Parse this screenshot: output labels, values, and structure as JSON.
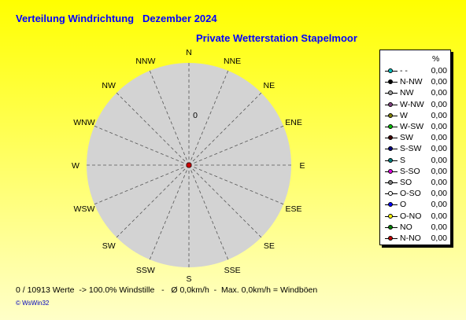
{
  "title": "Verteilung Windrichtung   Dezember 2024",
  "subtitle": "Private Wetterstation Stapelmoor",
  "colors": {
    "title": "#0000ff",
    "disk": "#d3d3d3",
    "center": "#cc0000"
  },
  "chart_data": {
    "type": "radar",
    "directions": [
      "N",
      "NNE",
      "NE",
      "ENE",
      "E",
      "ESE",
      "SE",
      "SSE",
      "S",
      "SSW",
      "SW",
      "WSW",
      "W",
      "WNW",
      "NW",
      "NNW"
    ],
    "values": [
      0,
      0,
      0,
      0,
      0,
      0,
      0,
      0,
      0,
      0,
      0,
      0,
      0,
      0,
      0,
      0
    ],
    "radial_tick": "0",
    "legend_header": "%",
    "legend": [
      {
        "label": "- -",
        "value": "0,00",
        "color": "#00c0c0"
      },
      {
        "label": "N-NW",
        "value": "0,00",
        "color": "#000000"
      },
      {
        "label": "NW",
        "value": "0,00",
        "color": "#a0a0a0"
      },
      {
        "label": "W-NW",
        "value": "0,00",
        "color": "#804080"
      },
      {
        "label": "W",
        "value": "0,00",
        "color": "#808000"
      },
      {
        "label": "W-SW",
        "value": "0,00",
        "color": "#00c000"
      },
      {
        "label": "SW",
        "value": "0,00",
        "color": "#400000"
      },
      {
        "label": "S-SW",
        "value": "0,00",
        "color": "#000080"
      },
      {
        "label": "S",
        "value": "0,00",
        "color": "#008080"
      },
      {
        "label": "S-SO",
        "value": "0,00",
        "color": "#e000e0"
      },
      {
        "label": "SO",
        "value": "0,00",
        "color": "#808080"
      },
      {
        "label": "O-SO",
        "value": "0,00",
        "color": "#ffffff"
      },
      {
        "label": "O",
        "value": "0,00",
        "color": "#0000ff"
      },
      {
        "label": "O-NO",
        "value": "0,00",
        "color": "#ffff00"
      },
      {
        "label": "NO",
        "value": "0,00",
        "color": "#008000"
      },
      {
        "label": "N-NO",
        "value": "0,00",
        "color": "#c00000"
      }
    ]
  },
  "footer": "0 / 10913 Werte  -> 100.0% Windstille   -   Ø 0,0km/h  -  Max. 0,0km/h = Windböen",
  "credit": "© WsWin32"
}
